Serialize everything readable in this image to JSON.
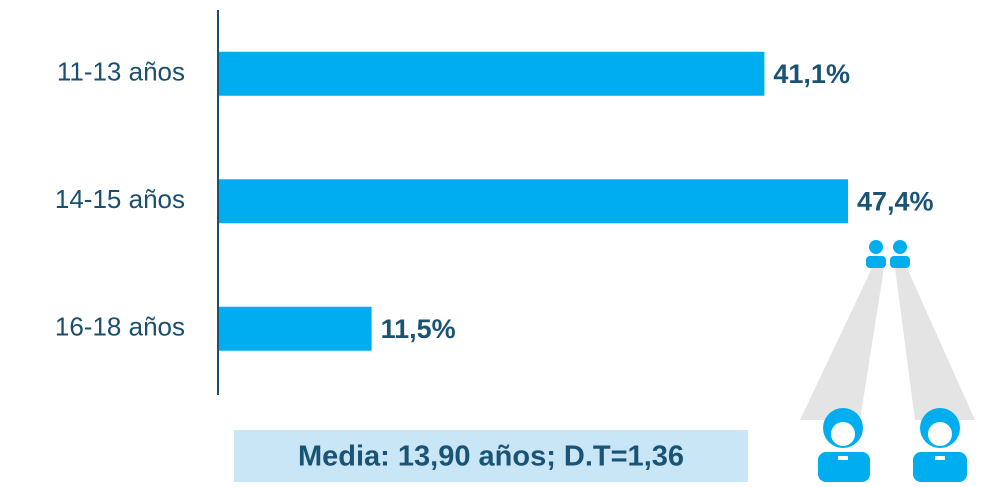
{
  "chart_data": {
    "type": "bar",
    "orientation": "horizontal",
    "categories": [
      "11-13 años",
      "14-15 años",
      "16-18 años"
    ],
    "values": [
      41.1,
      47.4,
      11.5
    ],
    "value_labels": [
      "41,1%",
      "47,4%",
      "11,5%"
    ],
    "color": "#00aeef",
    "annotation": "Media: 13,90 años; D.T=1,36"
  }
}
